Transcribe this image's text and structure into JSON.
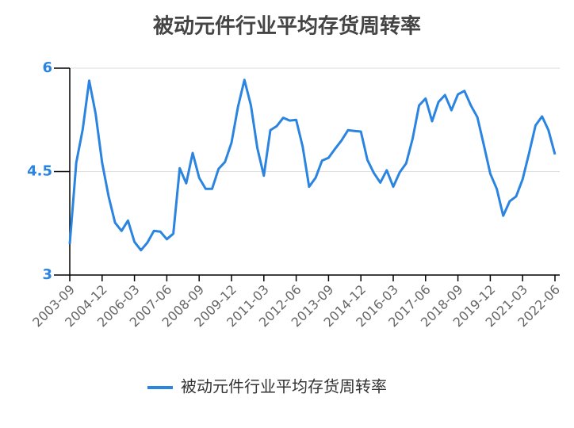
{
  "chart_data": {
    "type": "line",
    "title": "被动元件行业平均存货周转率",
    "categories": [
      "2003-09",
      null,
      null,
      null,
      null,
      "2004-12",
      null,
      null,
      null,
      null,
      "2006-03",
      null,
      null,
      null,
      null,
      "2007-06",
      null,
      null,
      null,
      null,
      "2008-09",
      null,
      null,
      null,
      null,
      "2009-12",
      null,
      null,
      null,
      null,
      "2011-03",
      null,
      null,
      null,
      null,
      "2012-06",
      null,
      null,
      null,
      null,
      "2013-09",
      null,
      null,
      null,
      null,
      "2014-12",
      null,
      null,
      null,
      null,
      "2016-03",
      null,
      null,
      null,
      null,
      "2017-06",
      null,
      null,
      null,
      null,
      "2018-09",
      null,
      null,
      null,
      null,
      "2019-12",
      null,
      null,
      null,
      null,
      "2021-03",
      null,
      null,
      null,
      null,
      "2022-06"
    ],
    "series": [
      {
        "name": "被动元件行业平均存货周转率",
        "color": "#2a84e0",
        "values": [
          3.45,
          4.63,
          5.11,
          5.82,
          5.34,
          4.63,
          4.14,
          3.76,
          3.64,
          3.79,
          3.48,
          3.36,
          3.47,
          3.64,
          3.63,
          3.52,
          3.6,
          4.55,
          4.33,
          4.77,
          4.41,
          4.25,
          4.25,
          4.54,
          4.64,
          4.92,
          5.44,
          5.83,
          5.46,
          4.84,
          4.44,
          5.1,
          5.16,
          5.28,
          5.24,
          5.25,
          4.86,
          4.28,
          4.41,
          4.66,
          4.7,
          4.83,
          4.95,
          5.1,
          5.09,
          5.08,
          4.67,
          4.48,
          4.34,
          4.52,
          4.28,
          4.49,
          4.62,
          4.98,
          5.46,
          5.56,
          5.23,
          5.51,
          5.61,
          5.39,
          5.62,
          5.67,
          5.46,
          5.29,
          4.89,
          4.47,
          4.25,
          3.86,
          4.07,
          4.14,
          4.39,
          4.77,
          5.17,
          5.3,
          5.1,
          4.75
        ]
      }
    ],
    "ylim": [
      3,
      6
    ],
    "yticks": [
      3,
      4.5,
      6
    ],
    "grid": true,
    "legend": "bottom"
  }
}
